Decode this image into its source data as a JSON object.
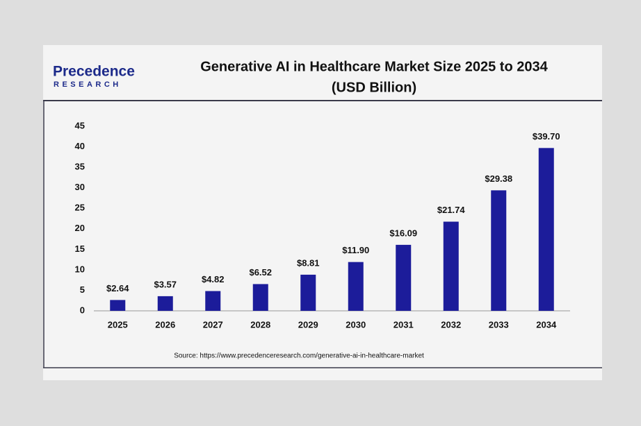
{
  "logo": {
    "name": "Precedence",
    "tagline": "RESEARCH"
  },
  "chart_data": {
    "type": "bar",
    "title": "Generative AI in Healthcare Market Size 2025 to 2034",
    "subtitle": "(USD Billion)",
    "categories": [
      "2025",
      "2026",
      "2027",
      "2028",
      "2029",
      "2030",
      "2031",
      "2032",
      "2033",
      "2034"
    ],
    "values": [
      2.64,
      3.57,
      4.82,
      6.52,
      8.81,
      11.9,
      16.09,
      21.74,
      29.38,
      39.7
    ],
    "value_labels": [
      "$2.64",
      "$3.57",
      "$4.82",
      "$6.52",
      "$8.81",
      "$11.90",
      "$16.09",
      "$21.74",
      "$29.38",
      "$39.70"
    ],
    "color": "#1c1c9a",
    "ylim": [
      0,
      45
    ],
    "yticks": [
      0,
      5,
      10,
      15,
      20,
      25,
      30,
      35,
      40,
      45
    ],
    "grid": false,
    "source": "Source: https://www.precedenceresearch.com/generative-ai-in-healthcare-market"
  }
}
